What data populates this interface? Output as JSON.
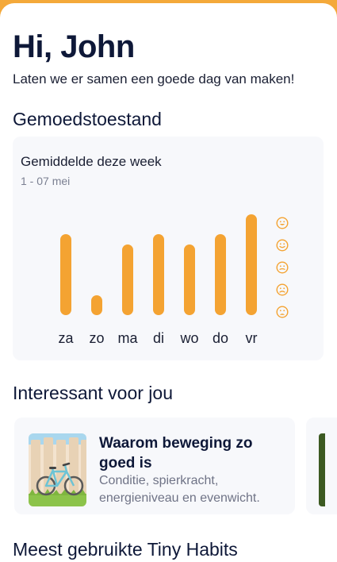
{
  "header": {
    "greeting": "Hi, John",
    "subtitle": "Laten we er samen een goede dag van maken!"
  },
  "mood_section": {
    "title": "Gemoedstoestand",
    "card": {
      "title": "Gemiddelde deze week",
      "date_range": "1 - 07 mei",
      "mood_icons": [
        "very-happy-face-icon",
        "happy-face-icon",
        "neutral-face-icon",
        "sad-face-icon",
        "very-sad-face-icon"
      ]
    }
  },
  "chart_data": {
    "type": "bar",
    "categories": [
      "za",
      "zo",
      "ma",
      "di",
      "wo",
      "do",
      "vr"
    ],
    "values": [
      4,
      1,
      3.5,
      4,
      3.5,
      4,
      5
    ],
    "ylim": [
      0,
      5
    ],
    "bar_color": "#f4a332"
  },
  "interesting_section": {
    "title": "Interessant voor jou",
    "articles": [
      {
        "title": "Waarom beweging zo goed is",
        "description": "Conditie, spierkracht, energieniveau en evenwicht."
      }
    ]
  },
  "habits_section": {
    "title": "Meest gebruikte Tiny Habits"
  },
  "colors": {
    "accent": "#f4a332",
    "card_background": "#f7f8fb",
    "heading": "#0e1838"
  }
}
